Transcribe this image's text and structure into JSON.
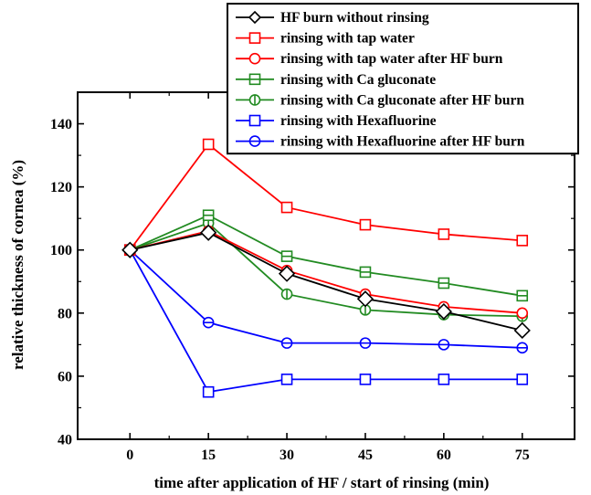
{
  "chart_data": {
    "type": "line",
    "title": "",
    "xlabel": "time after application of HF / start of rinsing (min)",
    "ylabel": "relative thickness of cornea (%)",
    "x": [
      0,
      15,
      30,
      45,
      60,
      75
    ],
    "x_ticks": [
      "0",
      "15",
      "30",
      "45",
      "60",
      "75"
    ],
    "y_ticks": [
      "40",
      "60",
      "80",
      "100",
      "120",
      "140"
    ],
    "xlim": [
      -10,
      85
    ],
    "ylim": [
      40,
      150
    ],
    "grid": false,
    "legend_position": "top-right",
    "series": [
      {
        "name": "HF burn without rinsing",
        "color": "#000000",
        "marker": "diamond",
        "values": [
          100,
          105.5,
          92.5,
          84.5,
          80.5,
          74.5
        ]
      },
      {
        "name": "rinsing with tap water",
        "color": "#ff0000",
        "marker": "square",
        "values": [
          100,
          133.5,
          113.5,
          108,
          105,
          103
        ]
      },
      {
        "name": "rinsing with tap water after HF burn",
        "color": "#ff0000",
        "marker": "circle",
        "values": [
          100,
          106,
          93.5,
          86,
          82,
          80
        ]
      },
      {
        "name": "rinsing with Ca gluconate",
        "color": "#228b22",
        "marker": "square-hline",
        "values": [
          100,
          111,
          98,
          93,
          89.5,
          85.5
        ]
      },
      {
        "name": "rinsing with Ca gluconate after HF burn",
        "color": "#228b22",
        "marker": "circle-vline",
        "values": [
          100,
          108.5,
          86,
          81,
          79.5,
          79
        ]
      },
      {
        "name": "rinsing with Hexafluorine",
        "color": "#0000ff",
        "marker": "square",
        "values": [
          100,
          55,
          59,
          59,
          59,
          59
        ]
      },
      {
        "name": "rinsing with Hexafluorine after HF burn",
        "color": "#0000ff",
        "marker": "circle-hline",
        "values": [
          100,
          77,
          70.5,
          70.5,
          70,
          69
        ]
      }
    ]
  }
}
